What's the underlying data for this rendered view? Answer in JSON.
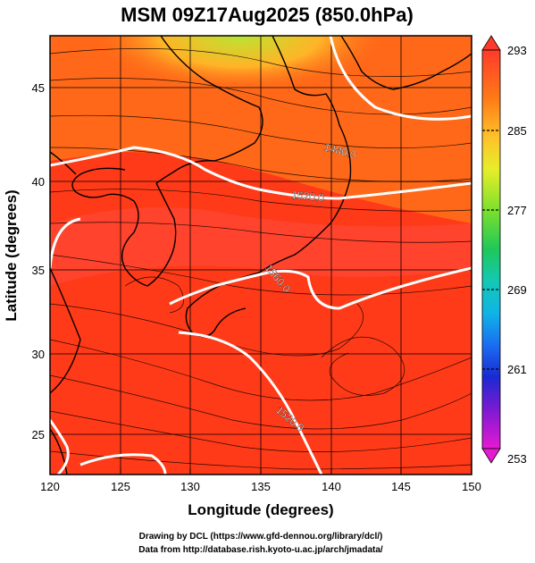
{
  "title": "MSM 09Z17Aug2025 (850.0hPa)",
  "xlabel": "Longitude (degrees)",
  "ylabel": "Latitude  (degrees)",
  "x_ticks": [
    "120",
    "125",
    "130",
    "135",
    "140",
    "145",
    "150"
  ],
  "y_ticks": [
    "45",
    "40",
    "35",
    "30",
    "25"
  ],
  "colorbar": {
    "labels": [
      "293",
      "285",
      "277",
      "269",
      "261",
      "253"
    ],
    "range": [
      253,
      293
    ]
  },
  "contours": [
    {
      "label": "1480.0"
    },
    {
      "label": "1520.0"
    },
    {
      "label": "1560.0"
    },
    {
      "label": "1520.0"
    }
  ],
  "credits": {
    "line1": "Drawing by DCL (https://www.gfd-dennou.org/library/dcl/)",
    "line2": "Data from http://database.rish.kyoto-u.ac.jp/arch/jmadata/"
  },
  "colors": {
    "hot": "#ff3300",
    "warm": "#ff7a1a",
    "cool": "#c8e632",
    "contour": "#ffffff"
  }
}
